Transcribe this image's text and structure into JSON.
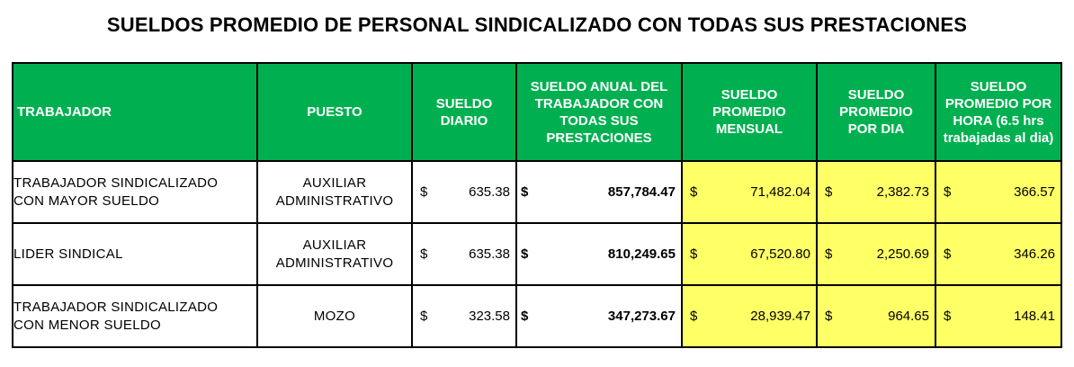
{
  "title": "SUELDOS PROMEDIO DE PERSONAL SINDICALIZADO CON TODAS SUS PRESTACIONES",
  "currency_symbol": "$",
  "colors": {
    "header_bg": "#00b050",
    "highlight_bg": "#ffff66"
  },
  "headers": {
    "trabajador": "TRABAJADOR",
    "puesto": "PUESTO",
    "sueldo_diario": [
      "SUELDO",
      "DIARIO"
    ],
    "sueldo_anual": [
      "SUELDO ANUAL DEL",
      "TRABAJADOR CON",
      "TODAS SUS",
      "PRESTACIONES"
    ],
    "promedio_mensual": [
      "SUELDO",
      "PROMEDIO",
      "MENSUAL"
    ],
    "promedio_dia": [
      "SUELDO",
      "PROMEDIO",
      "POR DIA"
    ],
    "promedio_hora": [
      "SUELDO",
      "PROMEDIO POR",
      "HORA (6.5 hrs",
      "trabajadas al dia)"
    ]
  },
  "rows": [
    {
      "trabajador": [
        "TRABAJADOR SINDICALIZADO",
        "CON MAYOR SUELDO"
      ],
      "puesto": [
        "AUXILIAR",
        "ADMINISTRATIVO"
      ],
      "sueldo_diario": "635.38",
      "sueldo_anual": "857,784.47",
      "promedio_mensual": "71,482.04",
      "promedio_dia": "2,382.73",
      "promedio_hora": "366.57"
    },
    {
      "trabajador": [
        "LIDER SINDICAL"
      ],
      "puesto": [
        "AUXILIAR",
        "ADMINISTRATIVO"
      ],
      "sueldo_diario": "635.38",
      "sueldo_anual": "810,249.65",
      "promedio_mensual": "67,520.80",
      "promedio_dia": "2,250.69",
      "promedio_hora": "346.26"
    },
    {
      "trabajador": [
        "TRABAJADOR SINDICALIZADO",
        "CON MENOR SUELDO"
      ],
      "puesto": [
        "MOZO"
      ],
      "sueldo_diario": "323.58",
      "sueldo_anual": "347,273.67",
      "promedio_mensual": "28,939.47",
      "promedio_dia": "964.65",
      "promedio_hora": "148.41"
    }
  ]
}
